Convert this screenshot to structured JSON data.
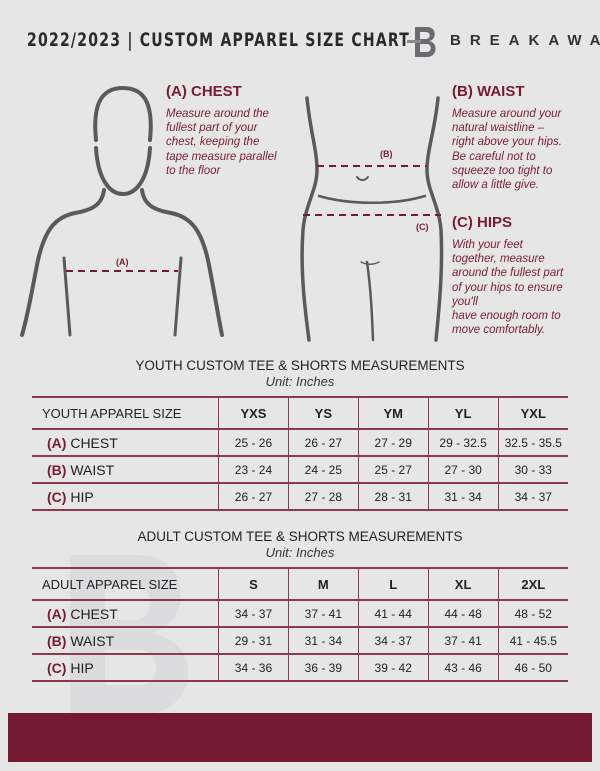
{
  "header": {
    "title": "2022/2023  |  CUSTOM APPAREL SIZE CHART",
    "brand": "BREAKAWAY"
  },
  "guide": {
    "chest": {
      "heading": "(A) CHEST",
      "label": "(A)",
      "lines": [
        "Measure around the",
        "fullest part of your",
        "chest, keeping the",
        "tape measure parallel",
        "to the floor"
      ]
    },
    "waist": {
      "heading": "(B) WAIST",
      "label": "(B)",
      "lines": [
        "Measure around your",
        "natural waistline –",
        "right above your hips.",
        "Be careful not to",
        "squeeze too tight to",
        "allow a little give."
      ]
    },
    "hips": {
      "heading": "(C) HIPS",
      "label": "(C)",
      "lines": [
        "With your feet",
        "together, measure",
        "around the fullest part",
        "of your hips to ensure",
        "you'll",
        "have enough room to",
        "move comfortably."
      ]
    }
  },
  "colors": {
    "accent": "#7a1c30",
    "footer": "#731a30",
    "background": "#e6e6e7"
  },
  "youth": {
    "title": "YOUTH CUSTOM TEE & SHORTS MEASUREMENTS",
    "unit": "Unit: Inches",
    "header": "YOUTH APPAREL SIZE",
    "sizes": [
      "YXS",
      "YS",
      "YM",
      "YL",
      "YXL"
    ],
    "rows": [
      {
        "letter": "(A)",
        "name": "CHEST",
        "values": [
          "25 - 26",
          "26 - 27",
          "27 - 29",
          "29 - 32.5",
          "32.5 - 35.5"
        ]
      },
      {
        "letter": "(B)",
        "name": "WAIST",
        "values": [
          "23 - 24",
          "24 - 25",
          "25 - 27",
          "27 - 30",
          "30 - 33"
        ]
      },
      {
        "letter": "(C)",
        "name": "HIP",
        "values": [
          "26 - 27",
          "27 - 28",
          "28 - 31",
          "31 - 34",
          "34 - 37"
        ]
      }
    ]
  },
  "adult": {
    "title": "ADULT CUSTOM TEE & SHORTS MEASUREMENTS",
    "unit": "Unit: Inches",
    "header": "ADULT APPAREL SIZE",
    "sizes": [
      "S",
      "M",
      "L",
      "XL",
      "2XL"
    ],
    "rows": [
      {
        "letter": "(A)",
        "name": "CHEST",
        "values": [
          "34 - 37",
          "37 - 41",
          "41 - 44",
          "44 - 48",
          "48 - 52"
        ]
      },
      {
        "letter": "(B)",
        "name": "WAIST",
        "values": [
          "29 - 31",
          "31 - 34",
          "34 - 37",
          "37 - 41",
          "41 - 45.5"
        ]
      },
      {
        "letter": "(C)",
        "name": "HIP",
        "values": [
          "34 - 36",
          "36 - 39",
          "39 - 42",
          "43 - 46",
          "46 - 50"
        ]
      }
    ]
  }
}
